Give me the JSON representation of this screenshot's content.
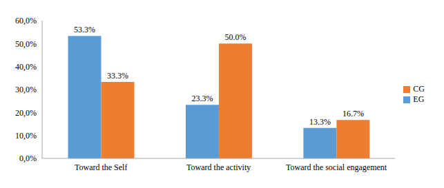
{
  "chart_data": {
    "type": "bar",
    "categories": [
      "Toward the Self",
      "Toward the activity",
      "Toward the social engagement"
    ],
    "series": [
      {
        "name": "EG",
        "color": "#5b9bd5",
        "values": [
          53.3,
          23.3,
          13.3
        ],
        "value_labels": [
          "53.3%",
          "23.3%",
          "13.3%"
        ]
      },
      {
        "name": "CG",
        "color": "#ed7d31",
        "values": [
          33.3,
          50.0,
          16.7
        ],
        "value_labels": [
          "33.3%",
          "50.0%",
          "16.7%"
        ]
      }
    ],
    "ylim": [
      0,
      60
    ],
    "yticks": [
      {
        "value": 0,
        "label": "0,0%"
      },
      {
        "value": 10,
        "label": "10,0%"
      },
      {
        "value": 20,
        "label": "20,0%"
      },
      {
        "value": 30,
        "label": "30,0%"
      },
      {
        "value": 40,
        "label": "40,0%"
      },
      {
        "value": 50,
        "label": "50,0%"
      },
      {
        "value": 60,
        "label": "60,0%"
      }
    ],
    "grid": false,
    "legend": "right",
    "data_labels": true
  }
}
